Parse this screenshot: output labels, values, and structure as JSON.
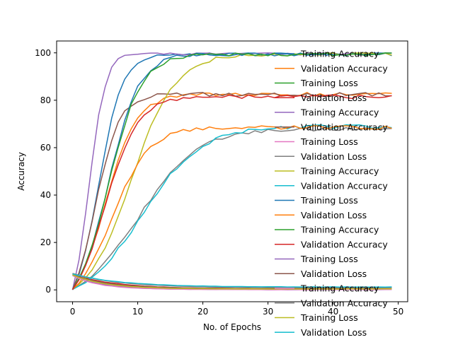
{
  "chart_data": {
    "type": "line",
    "title": "",
    "xlabel": "No. of Epochs",
    "ylabel": "Accuracy",
    "xlim": [
      -2.45,
      51.45
    ],
    "ylim": [
      -5,
      105
    ],
    "x_ticks": [
      0,
      10,
      20,
      30,
      40,
      50
    ],
    "y_ticks": [
      0,
      20,
      40,
      60,
      80,
      100
    ],
    "x_tick_labels": [
      "0",
      "10",
      "20",
      "30",
      "40",
      "50"
    ],
    "y_tick_labels": [
      "0",
      "20",
      "40",
      "60",
      "80",
      "100"
    ],
    "grid": false,
    "legend_position": "right, overlapping the plot",
    "epochs": 50,
    "series": [
      {
        "name": "Training Accuracy",
        "color": "#1f77b4",
        "shape": "acc",
        "final": 99.5,
        "k": 0.55,
        "t0": 4.0,
        "seed": 1
      },
      {
        "name": "Validation Accuracy",
        "color": "#ff7f0e",
        "shape": "acc",
        "final": 82.5,
        "k": 0.42,
        "t0": 5.0,
        "seed": 2
      },
      {
        "name": "Training Loss",
        "color": "#2ca02c",
        "shape": "loss",
        "start": 6.5,
        "final": 0.3,
        "k": 0.18,
        "seed": 3
      },
      {
        "name": "Validation Loss",
        "color": "#d62728",
        "shape": "loss",
        "start": 6.8,
        "final": 0.5,
        "k": 0.16,
        "seed": 4
      },
      {
        "name": "Training Accuracy",
        "color": "#9467bd",
        "shape": "acc",
        "final": 99.8,
        "k": 0.8,
        "t0": 2.5,
        "seed": 5
      },
      {
        "name": "Validation Accuracy",
        "color": "#8c564b",
        "shape": "acc",
        "final": 82.5,
        "k": 0.55,
        "t0": 3.5,
        "seed": 6
      },
      {
        "name": "Training Loss",
        "color": "#e377c2",
        "shape": "loss",
        "start": 7.0,
        "final": 0.1,
        "k": 0.2,
        "seed": 7
      },
      {
        "name": "Validation Loss",
        "color": "#7f7f7f",
        "shape": "acc",
        "final": 68.0,
        "k": 0.22,
        "t0": 10.0,
        "seed": 8
      },
      {
        "name": "Training Accuracy",
        "color": "#bcbd22",
        "shape": "acc",
        "final": 99.5,
        "k": 0.3,
        "t0": 9.0,
        "seed": 9
      },
      {
        "name": "Validation Accuracy",
        "color": "#17becf",
        "shape": "acc",
        "final": 69.0,
        "k": 0.22,
        "t0": 10.5,
        "seed": 10
      },
      {
        "name": "Training Loss",
        "color": "#1f77b4",
        "shape": "acc",
        "final": 99.7,
        "k": 0.42,
        "t0": 5.5,
        "seed": 11
      },
      {
        "name": "Validation Loss",
        "color": "#ff7f0e",
        "shape": "acc",
        "final": 68.5,
        "k": 0.35,
        "t0": 6.0,
        "seed": 12
      },
      {
        "name": "Training Accuracy",
        "color": "#2ca02c",
        "shape": "acc",
        "final": 99.5,
        "k": 0.4,
        "t0": 5.5,
        "seed": 13
      },
      {
        "name": "Validation Accuracy",
        "color": "#d62728",
        "shape": "acc",
        "final": 81.5,
        "k": 0.4,
        "t0": 5.0,
        "seed": 14
      },
      {
        "name": "Training Loss",
        "color": "#9467bd",
        "shape": "loss",
        "start": 6.0,
        "final": 0.2,
        "k": 0.22,
        "seed": 15
      },
      {
        "name": "Validation Loss",
        "color": "#8c564b",
        "shape": "loss",
        "start": 6.5,
        "final": 0.6,
        "k": 0.18,
        "seed": 16
      },
      {
        "name": "Training Accuracy",
        "color": "#e377c2",
        "shape": "loss",
        "start": 6.2,
        "final": 0.2,
        "k": 0.25,
        "seed": 17
      },
      {
        "name": "Validation Accuracy",
        "color": "#7f7f7f",
        "shape": "loss",
        "start": 6.9,
        "final": 1.0,
        "k": 0.14,
        "seed": 18
      },
      {
        "name": "Training Loss",
        "color": "#bcbd22",
        "shape": "loss",
        "start": 6.3,
        "final": 0.4,
        "k": 0.2,
        "seed": 19
      },
      {
        "name": "Validation Loss",
        "color": "#17becf",
        "shape": "loss",
        "start": 6.7,
        "final": 1.2,
        "k": 0.13,
        "seed": 20
      }
    ]
  }
}
